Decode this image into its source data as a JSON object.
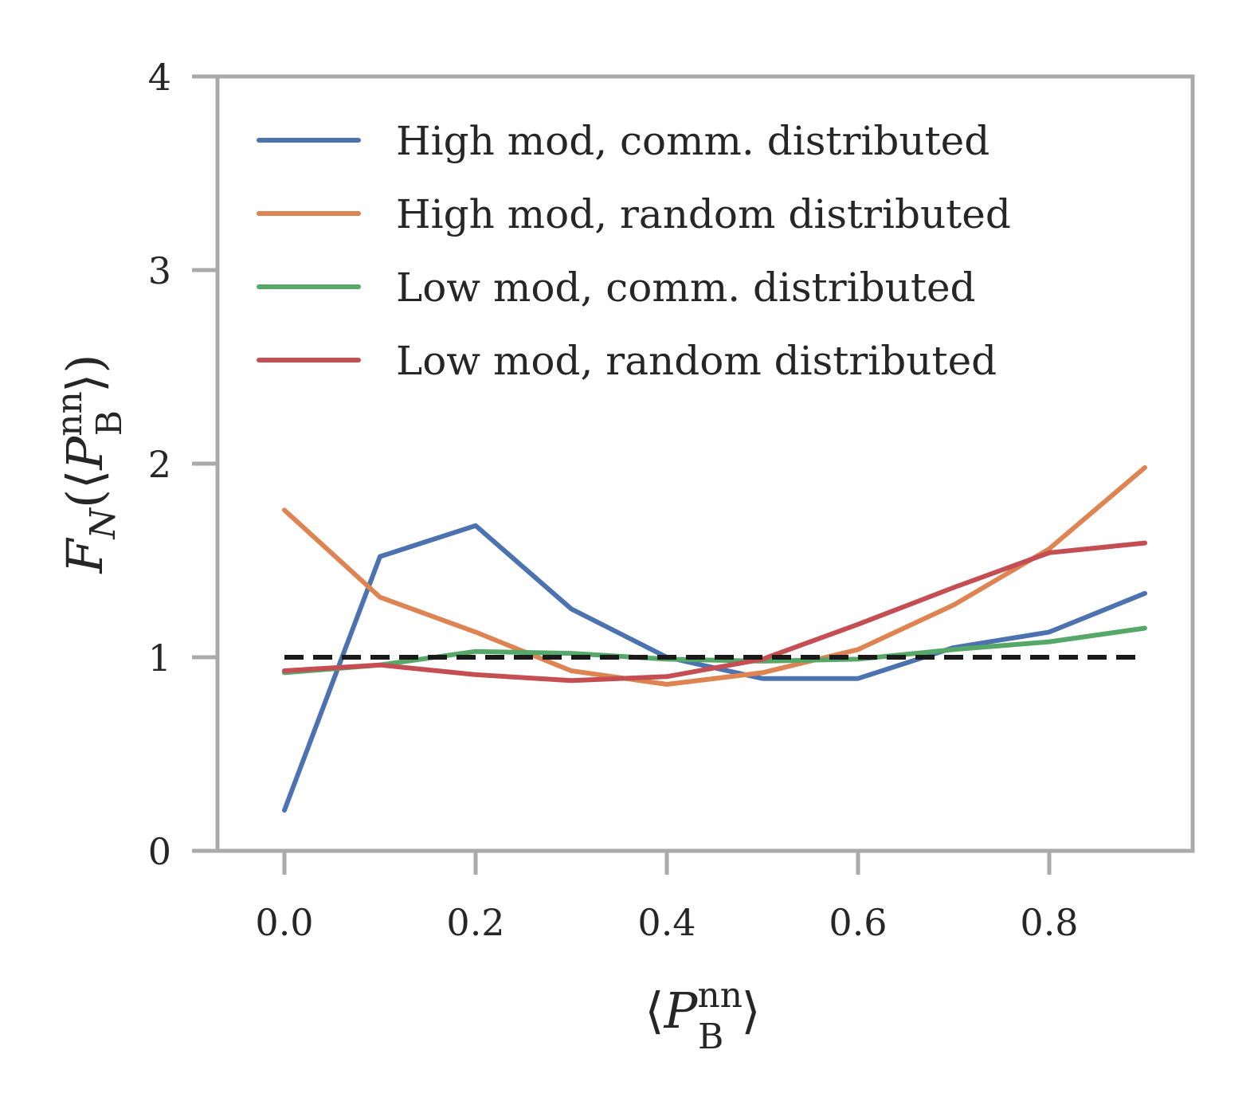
{
  "chart_data": {
    "type": "line",
    "title": "",
    "xlabel": {
      "open": "⟨",
      "var": "P",
      "sup": "nn",
      "sub": "B",
      "close": "⟩"
    },
    "ylabel": {
      "func": "F",
      "func_sub": "N",
      "paren_open": "(",
      "open": "⟨",
      "var": "P",
      "sup": "nn",
      "sub": "B",
      "close": "⟩",
      "paren_close": ")"
    },
    "x": [
      0.0,
      0.1,
      0.2,
      0.3,
      0.4,
      0.5,
      0.6,
      0.7,
      0.8,
      0.9
    ],
    "xlim": [
      -0.07,
      0.95
    ],
    "ylim": [
      0,
      4
    ],
    "xticks": [
      0.0,
      0.2,
      0.4,
      0.6,
      0.8
    ],
    "xtick_labels": [
      "0.0",
      "0.2",
      "0.4",
      "0.6",
      "0.8"
    ],
    "yticks": [
      0,
      1,
      2,
      3,
      4
    ],
    "ytick_labels": [
      "0",
      "1",
      "2",
      "3",
      "4"
    ],
    "grid": false,
    "legend_position": "top-left",
    "series": [
      {
        "name": "High mod, comm. distributed",
        "color": "#4c72b0",
        "values": [
          0.21,
          1.52,
          1.68,
          1.25,
          1.0,
          0.89,
          0.89,
          1.05,
          1.13,
          1.33
        ]
      },
      {
        "name": "High mod, random distributed",
        "color": "#dd8452",
        "values": [
          1.76,
          1.31,
          1.13,
          0.93,
          0.86,
          0.92,
          1.04,
          1.27,
          1.56,
          1.98
        ]
      },
      {
        "name": "Low mod, comm. distributed",
        "color": "#55a868",
        "values": [
          0.92,
          0.96,
          1.03,
          1.02,
          0.99,
          0.98,
          0.99,
          1.04,
          1.08,
          1.15
        ]
      },
      {
        "name": "Low mod, random distributed",
        "color": "#c44e52",
        "values": [
          0.93,
          0.96,
          0.91,
          0.88,
          0.9,
          0.99,
          1.17,
          1.36,
          1.54,
          1.59
        ]
      }
    ],
    "reference_line": {
      "y": 1,
      "x_range": [
        0.0,
        0.9
      ],
      "color": "#1a1a1a",
      "style": "dashed"
    },
    "axis_color": "#aaaaaa"
  }
}
